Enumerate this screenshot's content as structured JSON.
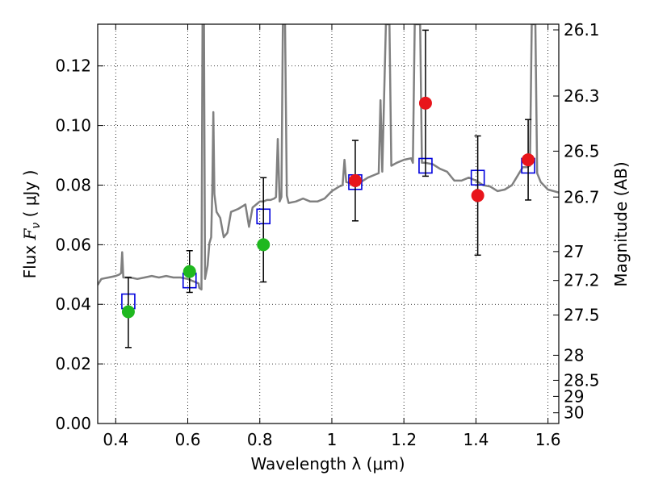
{
  "chart_data": {
    "type": "scatter",
    "xlabel": "Wavelength  λ (μm)",
    "ylabel": "Flux  Fν  ( μJy )",
    "ylabel_right": "Magnitude (AB)",
    "xlim": [
      0.35,
      1.63
    ],
    "ylim": [
      0.0,
      0.134
    ],
    "grid": true,
    "x_ticks": [
      0.4,
      0.6,
      0.8,
      1.0,
      1.2,
      1.4,
      1.6
    ],
    "x_tick_labels": [
      "0.4",
      "0.6",
      "0.8",
      "1",
      "1.2",
      "1.4",
      "1.6"
    ],
    "y_ticks": [
      0.0,
      0.02,
      0.04,
      0.06,
      0.08,
      0.1,
      0.12
    ],
    "y_tick_labels": [
      "0.00",
      "0.02",
      "0.04",
      "0.06",
      "0.08",
      "0.10",
      "0.12"
    ],
    "right_axis_ticks": [
      {
        "label": "26.1",
        "flux": 0.1321
      },
      {
        "label": "26.3",
        "flux": 0.1099
      },
      {
        "label": "26.5",
        "flux": 0.0914
      },
      {
        "label": "26.7",
        "flux": 0.076
      },
      {
        "label": "27",
        "flux": 0.0577
      },
      {
        "label": "27.2",
        "flux": 0.048
      },
      {
        "label": "27.5",
        "flux": 0.0364
      },
      {
        "label": "28",
        "flux": 0.0229
      },
      {
        "label": "28.5",
        "flux": 0.0145
      },
      {
        "label": "29",
        "flux": 0.0091
      },
      {
        "label": "30",
        "flux": 0.0036
      }
    ],
    "colors": {
      "spectrum": "#808080",
      "model_box": "#0000dd",
      "green": "#1fb81f",
      "red": "#e8151b",
      "errorbar": "#000000"
    },
    "spectrum": [
      [
        0.35,
        0.0465
      ],
      [
        0.36,
        0.0485
      ],
      [
        0.38,
        0.049
      ],
      [
        0.4,
        0.0495
      ],
      [
        0.41,
        0.05
      ],
      [
        0.415,
        0.0505
      ],
      [
        0.418,
        0.0575
      ],
      [
        0.421,
        0.049
      ],
      [
        0.44,
        0.049
      ],
      [
        0.46,
        0.0485
      ],
      [
        0.48,
        0.049
      ],
      [
        0.5,
        0.0495
      ],
      [
        0.52,
        0.049
      ],
      [
        0.54,
        0.0495
      ],
      [
        0.56,
        0.049
      ],
      [
        0.58,
        0.049
      ],
      [
        0.6,
        0.0485
      ],
      [
        0.62,
        0.0475
      ],
      [
        0.63,
        0.047
      ],
      [
        0.632,
        0.0455
      ],
      [
        0.638,
        0.045
      ],
      [
        0.641,
        0.134
      ],
      [
        0.645,
        0.134
      ],
      [
        0.648,
        0.0485
      ],
      [
        0.655,
        0.053
      ],
      [
        0.66,
        0.0605
      ],
      [
        0.665,
        0.0625
      ],
      [
        0.668,
        0.078
      ],
      [
        0.671,
        0.1045
      ],
      [
        0.674,
        0.077
      ],
      [
        0.68,
        0.071
      ],
      [
        0.69,
        0.069
      ],
      [
        0.7,
        0.0625
      ],
      [
        0.71,
        0.064
      ],
      [
        0.72,
        0.071
      ],
      [
        0.74,
        0.072
      ],
      [
        0.76,
        0.0735
      ],
      [
        0.77,
        0.066
      ],
      [
        0.78,
        0.0725
      ],
      [
        0.79,
        0.0735
      ],
      [
        0.8,
        0.0745
      ],
      [
        0.81,
        0.0745
      ],
      [
        0.82,
        0.075
      ],
      [
        0.83,
        0.075
      ],
      [
        0.84,
        0.0755
      ],
      [
        0.845,
        0.076
      ],
      [
        0.85,
        0.0955
      ],
      [
        0.855,
        0.0745
      ],
      [
        0.86,
        0.076
      ],
      [
        0.864,
        0.134
      ],
      [
        0.87,
        0.134
      ],
      [
        0.875,
        0.0765
      ],
      [
        0.88,
        0.074
      ],
      [
        0.9,
        0.0745
      ],
      [
        0.92,
        0.0755
      ],
      [
        0.94,
        0.0745
      ],
      [
        0.96,
        0.0745
      ],
      [
        0.98,
        0.0755
      ],
      [
        1.0,
        0.078
      ],
      [
        1.02,
        0.0795
      ],
      [
        1.03,
        0.08
      ],
      [
        1.035,
        0.0885
      ],
      [
        1.04,
        0.081
      ],
      [
        1.06,
        0.0805
      ],
      [
        1.08,
        0.081
      ],
      [
        1.1,
        0.0825
      ],
      [
        1.12,
        0.0835
      ],
      [
        1.13,
        0.084
      ],
      [
        1.135,
        0.1085
      ],
      [
        1.14,
        0.0845
      ],
      [
        1.15,
        0.134
      ],
      [
        1.155,
        0.134
      ],
      [
        1.16,
        0.134
      ],
      [
        1.165,
        0.0865
      ],
      [
        1.18,
        0.0875
      ],
      [
        1.2,
        0.0885
      ],
      [
        1.22,
        0.089
      ],
      [
        1.225,
        0.0875
      ],
      [
        1.23,
        0.134
      ],
      [
        1.245,
        0.134
      ],
      [
        1.25,
        0.0875
      ],
      [
        1.26,
        0.0875
      ],
      [
        1.28,
        0.087
      ],
      [
        1.3,
        0.0855
      ],
      [
        1.32,
        0.0845
      ],
      [
        1.34,
        0.0815
      ],
      [
        1.36,
        0.0815
      ],
      [
        1.38,
        0.0825
      ],
      [
        1.4,
        0.0815
      ],
      [
        1.42,
        0.08
      ],
      [
        1.44,
        0.0795
      ],
      [
        1.46,
        0.078
      ],
      [
        1.48,
        0.0785
      ],
      [
        1.5,
        0.08
      ],
      [
        1.52,
        0.084
      ],
      [
        1.53,
        0.086
      ],
      [
        1.54,
        0.086
      ],
      [
        1.55,
        0.0865
      ],
      [
        1.555,
        0.134
      ],
      [
        1.565,
        0.134
      ],
      [
        1.57,
        0.084
      ],
      [
        1.58,
        0.081
      ],
      [
        1.6,
        0.0785
      ],
      [
        1.63,
        0.0775
      ]
    ],
    "model_boxes": {
      "x": [
        0.435,
        0.605,
        0.81,
        1.065,
        1.26,
        1.405,
        1.545
      ],
      "y": [
        0.041,
        0.048,
        0.0695,
        0.081,
        0.0865,
        0.0825,
        0.0865
      ]
    },
    "observations": [
      {
        "x": 0.435,
        "y": 0.0375,
        "err_low": 0.0255,
        "err_high": 0.049,
        "color": "green"
      },
      {
        "x": 0.605,
        "y": 0.051,
        "err_low": 0.044,
        "err_high": 0.058,
        "color": "green"
      },
      {
        "x": 0.81,
        "y": 0.06,
        "err_low": 0.0475,
        "err_high": 0.0825,
        "color": "green"
      },
      {
        "x": 1.065,
        "y": 0.0815,
        "err_low": 0.068,
        "err_high": 0.095,
        "color": "red"
      },
      {
        "x": 1.26,
        "y": 0.1075,
        "err_low": 0.083,
        "err_high": 0.132,
        "color": "red"
      },
      {
        "x": 1.405,
        "y": 0.0765,
        "err_low": 0.0565,
        "err_high": 0.0965,
        "color": "red"
      },
      {
        "x": 1.545,
        "y": 0.0885,
        "err_low": 0.075,
        "err_high": 0.102,
        "color": "red"
      }
    ]
  }
}
